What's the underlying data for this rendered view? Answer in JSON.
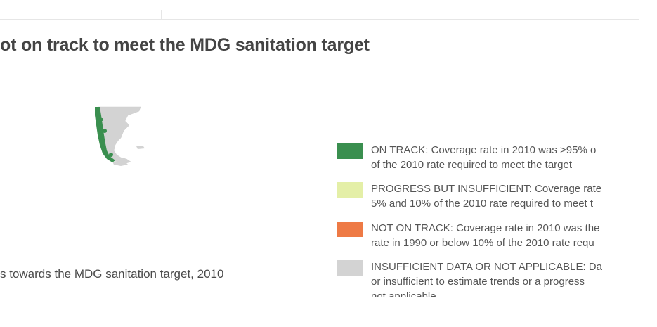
{
  "title": "ot on track to meet the MDG sanitation target",
  "caption": "s towards the MDG sanitation target, 2010",
  "legend": {
    "items": [
      {
        "color": "#3a8f4f",
        "line1": "ON TRACK: Coverage rate in 2010 was >95% o",
        "line2": "of the 2010 rate required to meet the target"
      },
      {
        "color": "#e4efa7",
        "line1": "PROGRESS BUT INSUFFICIENT: Coverage rate",
        "line2": "5% and 10% of the 2010 rate required to meet t"
      },
      {
        "color": "#ee7a45",
        "line1": "NOT ON TRACK: Coverage rate in 2010 was the",
        "line2": "rate in 1990 or below 10% of the 2010 rate requ"
      },
      {
        "color": "#d3d3d3",
        "line1": "INSUFFICIENT DATA OR NOT APPLICABLE: Da",
        "line2": "or insufficient to estimate trends or a progress",
        "line3": "not applicable"
      }
    ]
  },
  "map": {
    "region": "southern-south-america",
    "colors": {
      "on_track": "#3a8f4f",
      "insufficient_data": "#d3d3d3"
    }
  }
}
